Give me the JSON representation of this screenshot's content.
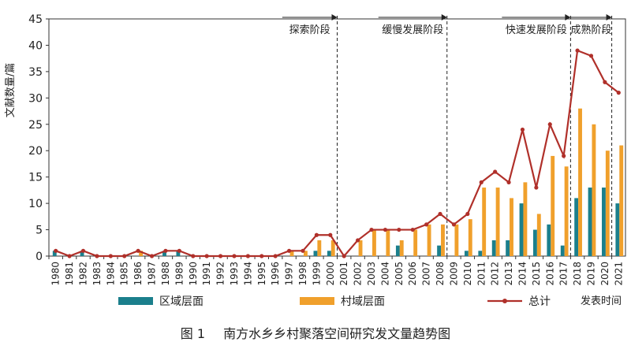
{
  "chart_data": {
    "type": "bar",
    "ylabel": "文献数量/篇",
    "xlabel": "发表时间",
    "ylim": [
      0,
      45
    ],
    "yticks": [
      0,
      5,
      10,
      15,
      20,
      25,
      30,
      35,
      40,
      45
    ],
    "categories": [
      "1980",
      "1981",
      "1982",
      "1983",
      "1984",
      "1985",
      "1986",
      "1987",
      "1988",
      "1989",
      "1990",
      "1991",
      "1992",
      "1993",
      "1994",
      "1995",
      "1996",
      "1997",
      "1998",
      "1999",
      "2000",
      "2001",
      "2002",
      "2003",
      "2004",
      "2005",
      "2006",
      "2007",
      "2008",
      "2009",
      "2010",
      "2011",
      "2012",
      "2013",
      "2014",
      "2015",
      "2016",
      "2017",
      "2018",
      "2019",
      "2020",
      "2021"
    ],
    "series": [
      {
        "name": "区域层面",
        "kind": "bar",
        "color": "#1b7f8c",
        "values": [
          1,
          0,
          1,
          0,
          0,
          0,
          0,
          0,
          1,
          1,
          0,
          0,
          0,
          0,
          0,
          0,
          0,
          0,
          0,
          1,
          1,
          0,
          0,
          0,
          0,
          2,
          0,
          0,
          2,
          0,
          1,
          1,
          3,
          3,
          10,
          5,
          6,
          2,
          11,
          13,
          13,
          10
        ]
      },
      {
        "name": "村域层面",
        "kind": "bar",
        "color": "#f0a02c",
        "values": [
          0,
          0,
          0,
          0,
          0,
          0,
          1,
          0,
          0,
          0,
          0,
          0,
          0,
          0,
          0,
          0,
          0,
          1,
          1,
          3,
          3,
          0,
          3,
          5,
          5,
          3,
          5,
          6,
          6,
          6,
          7,
          13,
          13,
          11,
          14,
          8,
          19,
          17,
          28,
          25,
          20,
          21
        ]
      },
      {
        "name": "总计",
        "kind": "line",
        "color": "#b0302a",
        "values": [
          1,
          0,
          1,
          0,
          0,
          0,
          1,
          0,
          1,
          1,
          0,
          0,
          0,
          0,
          0,
          0,
          0,
          1,
          1,
          4,
          4,
          0,
          3,
          5,
          5,
          5,
          5,
          6,
          8,
          6,
          8,
          14,
          16,
          14,
          24,
          13,
          25,
          19,
          39,
          38,
          33,
          31
        ]
      }
    ],
    "stages": [
      {
        "label": "探索阶段",
        "from": "1997",
        "to": "2001"
      },
      {
        "label": "缓慢发展阶段",
        "from": "2004",
        "to": "2009"
      },
      {
        "label": "快速发展阶段",
        "from": "2013",
        "to": "2018"
      },
      {
        "label": "成熟阶段",
        "from": "2018",
        "to": "2021"
      }
    ],
    "legend_position": "bottom"
  },
  "caption": {
    "number": "图 1",
    "title": "南方水乡乡村聚落空间研究发文量趋势图"
  }
}
